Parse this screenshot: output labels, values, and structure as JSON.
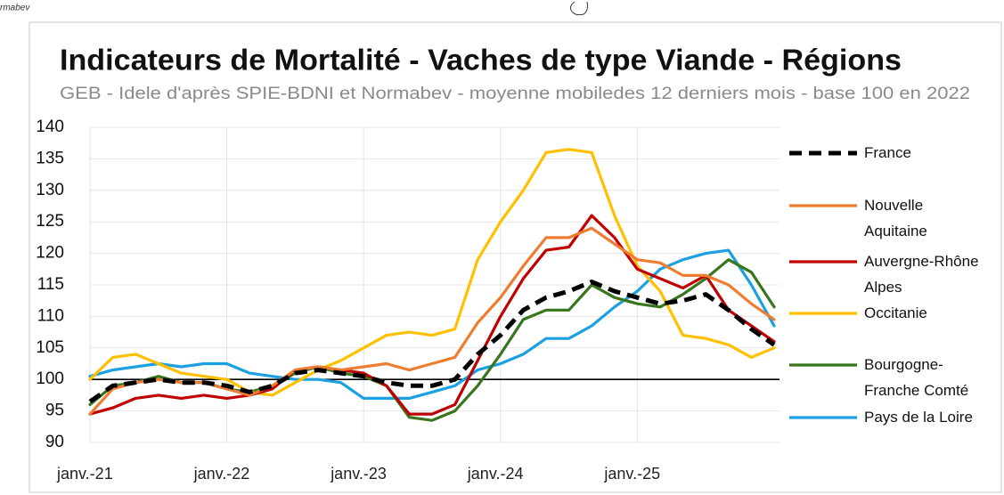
{
  "header_fragment": "rmabev",
  "chart_data": {
    "type": "line",
    "title": "Indicateurs de Mortalité - Vaches de type Viande - Régions",
    "subtitle": "GEB - Idele d'après SPIE-BDNI et Normabev - moyenne mobiledes 12 derniers mois - base 100 en 2022",
    "categories": [
      "janv.-21",
      null,
      null,
      null,
      null,
      null,
      "janv.-22",
      null,
      null,
      null,
      null,
      null,
      "janv.-23",
      null,
      null,
      null,
      null,
      null,
      "janv.-24",
      null,
      null,
      null,
      null,
      null,
      "janv.-25",
      null,
      null,
      null,
      null,
      null,
      null
    ],
    "ylim": [
      90,
      140
    ],
    "yticks": [
      90,
      95,
      100,
      105,
      110,
      115,
      120,
      125,
      130,
      135,
      140
    ],
    "grid": true,
    "reference_line": 100,
    "legend": "right",
    "series": [
      {
        "name": "France",
        "color": "#000000",
        "dashed": true,
        "values": [
          96.5,
          99,
          99.5,
          100,
          99.5,
          99.5,
          99,
          98,
          99,
          101,
          101.5,
          101,
          100.5,
          99.5,
          99,
          99,
          100,
          104,
          107,
          111,
          113,
          114,
          115.5,
          114,
          113,
          112,
          112.5,
          113.5,
          111,
          108,
          105.5
        ]
      },
      {
        "name": "Nouvelle Aquitaine",
        "color": "#ed7d31",
        "values": [
          94.5,
          98.5,
          99.5,
          100,
          99.5,
          99.5,
          98.5,
          97.5,
          99,
          101.5,
          102,
          101.5,
          102,
          102.5,
          101.5,
          102.5,
          103.5,
          109,
          113,
          118,
          122.5,
          122.5,
          124,
          121.5,
          119,
          118.5,
          116.5,
          116.5,
          115,
          112,
          109.5
        ]
      },
      {
        "name": "Auvergne-Rhône Alpes",
        "color": "#c00000",
        "values": [
          94.5,
          95.5,
          97,
          97.5,
          97,
          97.5,
          97,
          97.5,
          98.5,
          101.5,
          102,
          101.5,
          101,
          99,
          94.5,
          94.5,
          96,
          103,
          110,
          116,
          120.5,
          121,
          126,
          122.5,
          117.5,
          116,
          114.5,
          116.5,
          111,
          108.5,
          106
        ]
      },
      {
        "name": "Occitanie",
        "color": "#ffc000",
        "values": [
          100,
          103.5,
          104,
          102.5,
          101,
          100.5,
          100,
          98,
          97.5,
          99.5,
          101.5,
          103,
          105,
          107,
          107.5,
          107,
          108,
          119,
          125,
          130,
          136,
          136.5,
          136,
          126,
          118,
          114,
          107,
          106.5,
          105.5,
          103.5,
          105
        ]
      },
      {
        "name": "Bourgogne-Franche Comté",
        "color": "#38761d",
        "values": [
          96,
          99,
          99.5,
          100.5,
          99.5,
          99.5,
          98.5,
          98,
          99,
          101,
          102,
          101,
          100.5,
          99,
          94,
          93.5,
          95,
          99,
          104,
          109.5,
          111,
          111,
          115,
          113,
          112,
          111.5,
          113.5,
          116,
          119,
          117,
          111.5
        ]
      },
      {
        "name": "Pays de la Loire",
        "color": "#1ba1e2",
        "values": [
          100.5,
          101.5,
          102,
          102.5,
          102,
          102.5,
          102.5,
          101,
          100.5,
          100,
          100,
          99.5,
          97,
          97,
          97,
          98,
          99,
          101.5,
          102.5,
          104,
          106.5,
          106.5,
          108.5,
          111.5,
          114,
          117.5,
          119,
          120,
          120.5,
          115,
          108.5
        ]
      }
    ]
  }
}
